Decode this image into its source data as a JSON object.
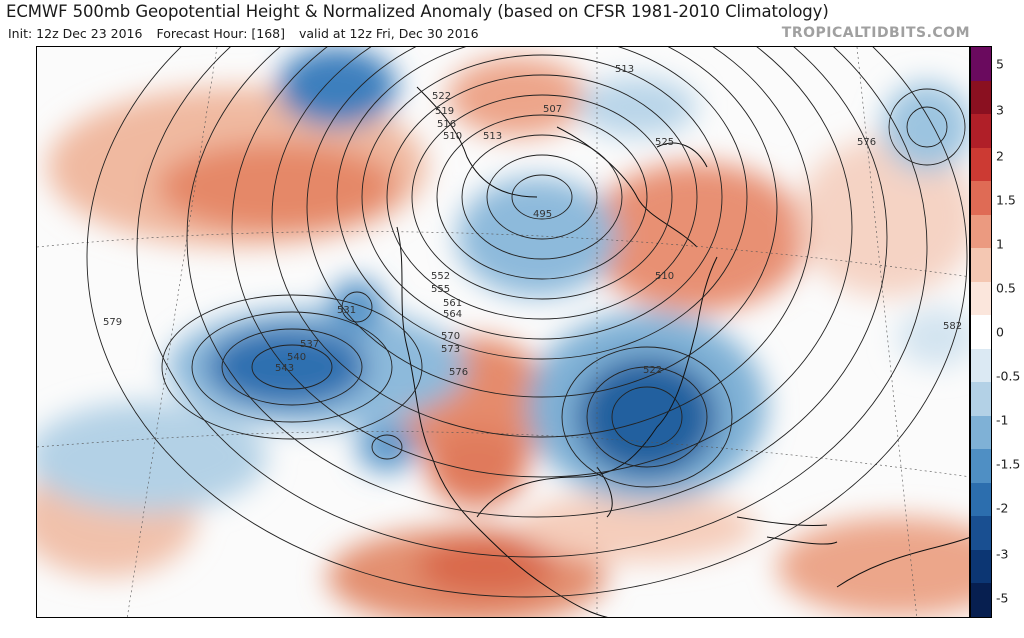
{
  "header": {
    "title": "ECMWF 500mb Geopotential Height & Normalized Anomaly (based on CFSR 1981-2010 Climatology)",
    "init": "Init: 12z Dec 23 2016",
    "forecast_hour": "Forecast Hour: [168]",
    "valid": "valid at 12z Fri, Dec 30 2016",
    "site": "TROPICALTIDBITS.COM"
  },
  "colorbar": {
    "labels": [
      "5",
      "3",
      "2",
      "1.5",
      "1",
      "0.5",
      "0",
      "-0.5",
      "-1",
      "-1.5",
      "-2",
      "-3",
      "-5"
    ],
    "colors": [
      "#6a0a5e",
      "#8a1020",
      "#b01f28",
      "#cc3a33",
      "#df6b55",
      "#eb9a80",
      "#f4c7b2",
      "#fbe6dc",
      "#ffffff",
      "#dbe9f3",
      "#b3d1e6",
      "#7fb1d6",
      "#4f8fc4",
      "#2c6eae",
      "#194f91",
      "#0c3673",
      "#071f50"
    ]
  },
  "contour_labels": [
    "522",
    "519",
    "516",
    "510",
    "513",
    "507",
    "513",
    "525",
    "576",
    "495",
    "579",
    "531",
    "537",
    "540",
    "543",
    "552",
    "555",
    "561",
    "564",
    "570",
    "573",
    "576",
    "510",
    "522",
    "582"
  ]
}
